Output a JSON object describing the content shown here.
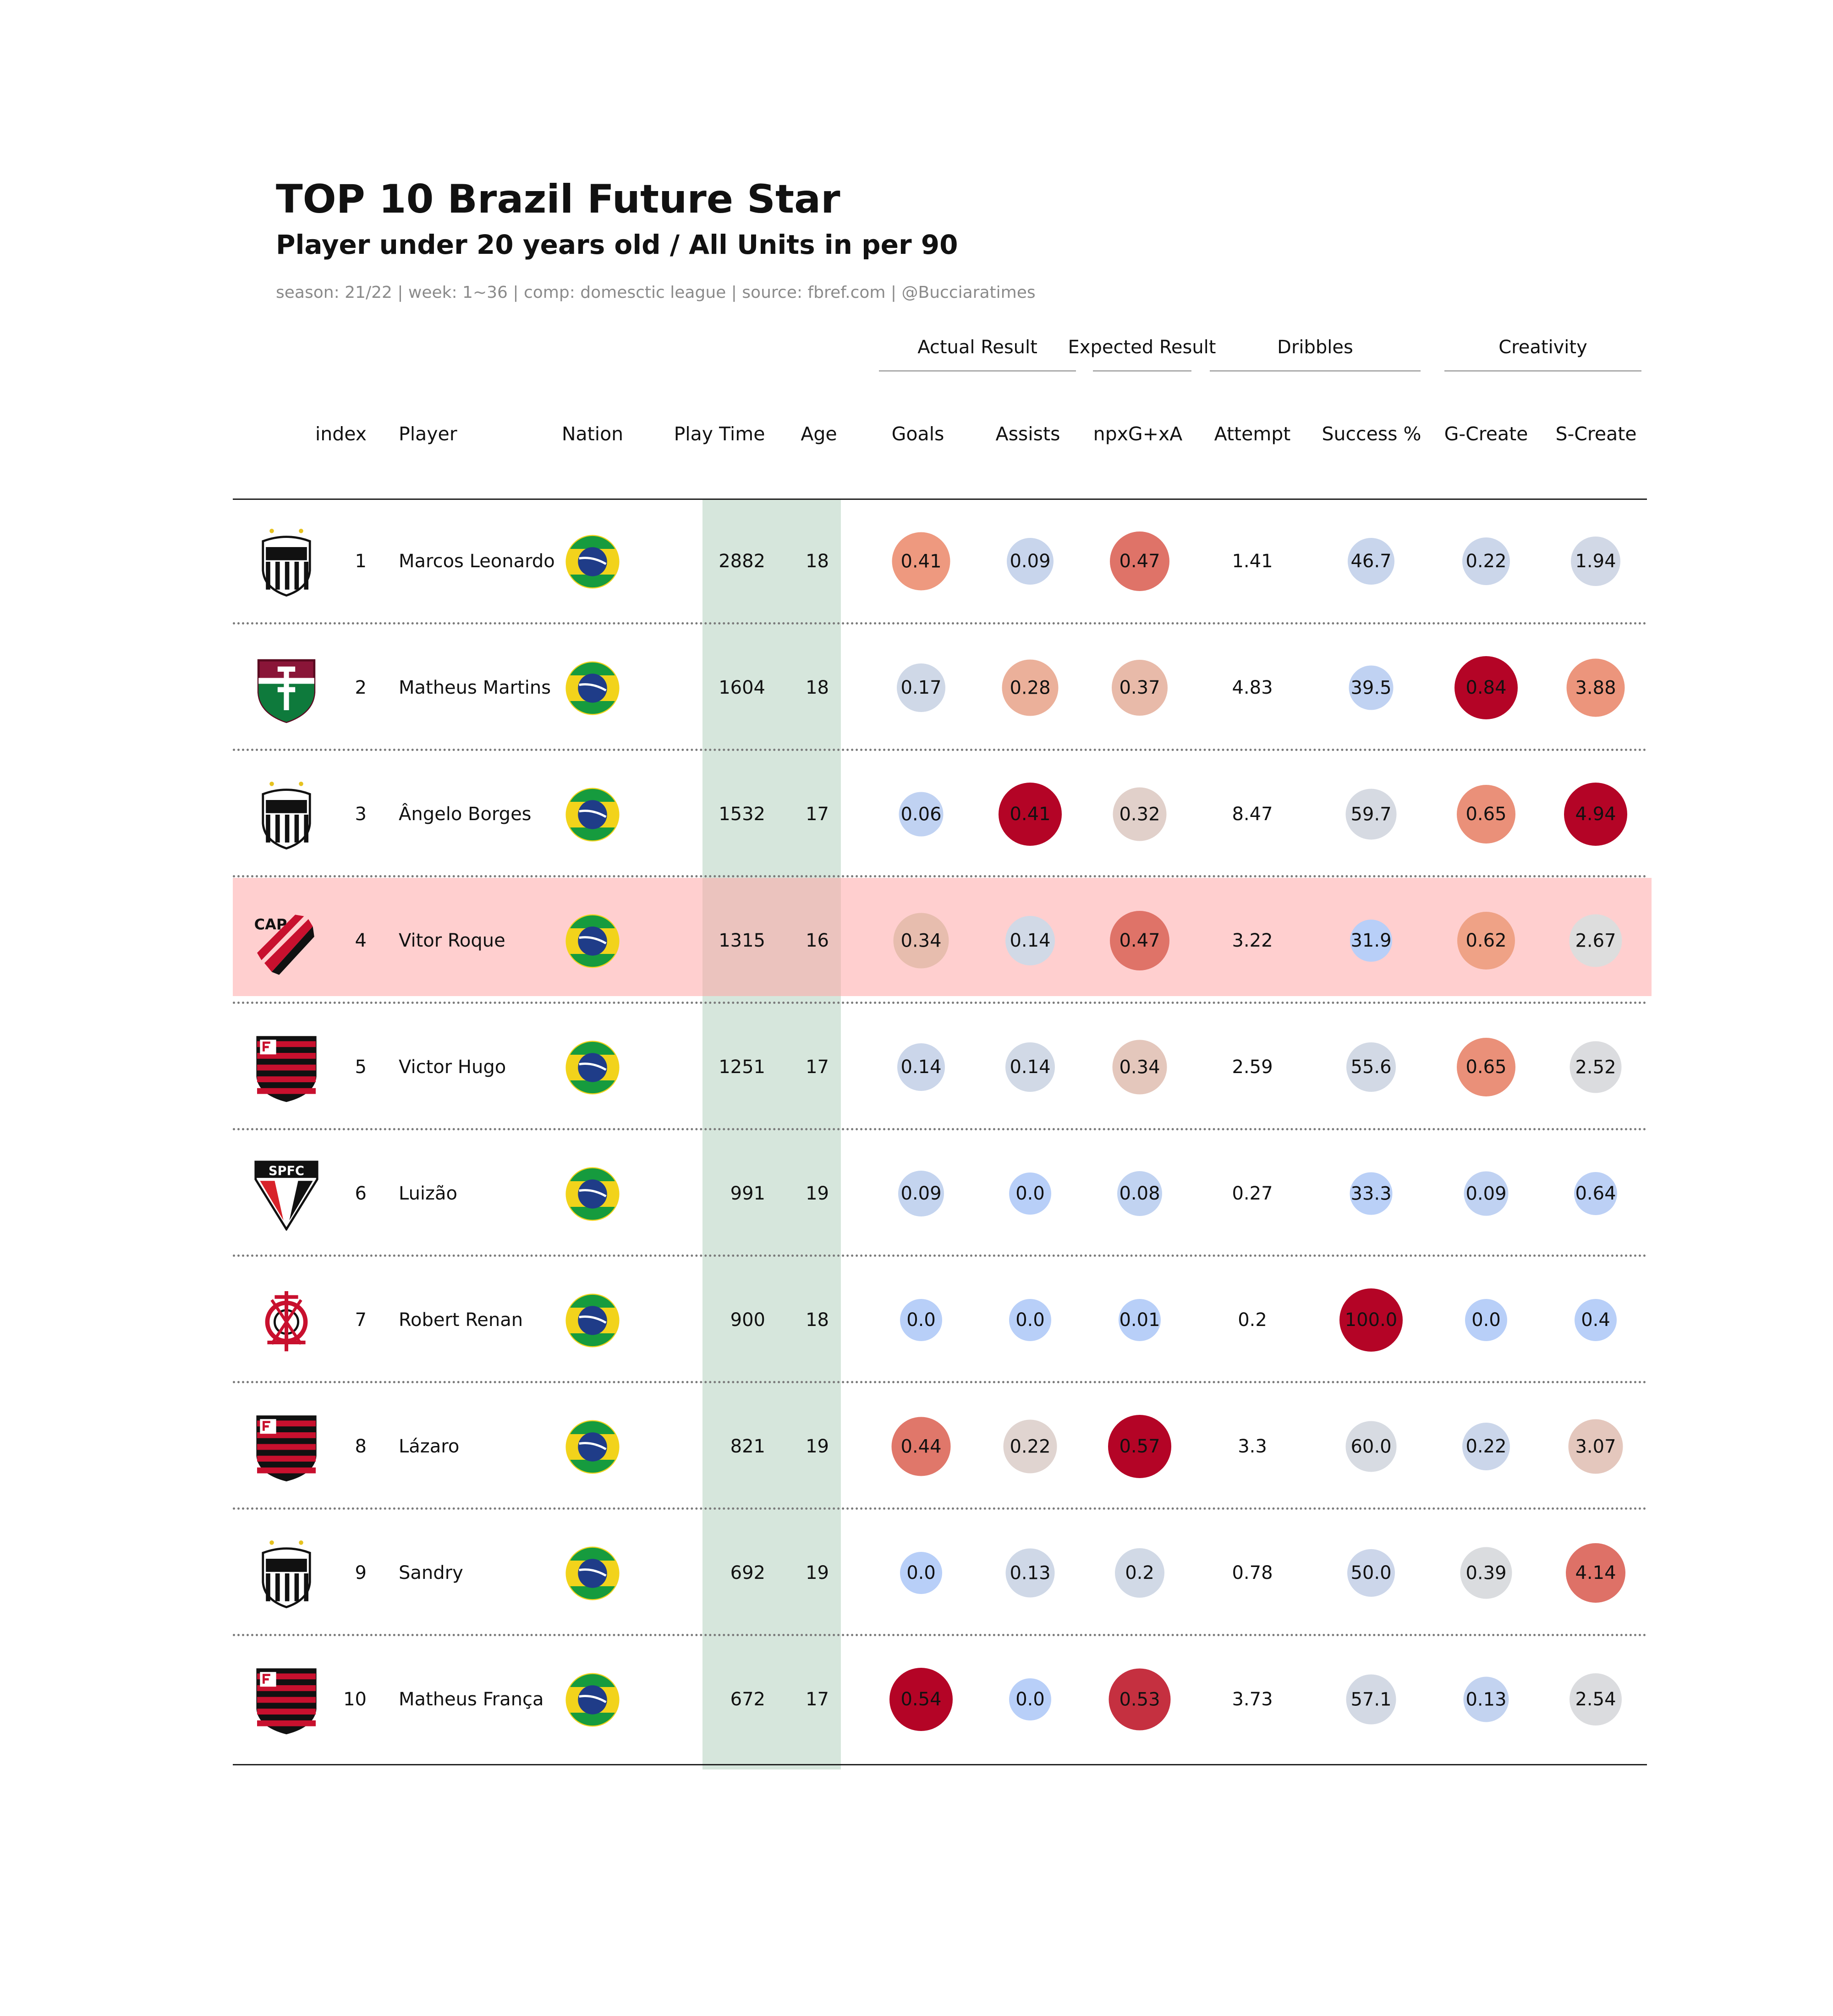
{
  "header": {
    "title": "TOP 10 Brazil Future Star",
    "subtitle": "Player under 20 years old / All Units in per 90",
    "meta": "season: 21/22 | week: 1~36 | comp: domesctic league | source: fbref.com | @Bucciaratimes"
  },
  "groups": [
    {
      "key": "actual",
      "label": "Actual Result"
    },
    {
      "key": "expected",
      "label": "Expected Result"
    },
    {
      "key": "dribbles",
      "label": "Dribbles"
    },
    {
      "key": "creativity",
      "label": "Creativity"
    }
  ],
  "columns": {
    "index": "index",
    "player": "Player",
    "nation": "Nation",
    "playtime": "Play Time",
    "age": "Age",
    "goals": "Goals",
    "assists": "Assists",
    "npxg": "npxG+xA",
    "attempt": "Attempt",
    "success": "Success %",
    "gcreate": "G-Create",
    "screate": "S-Create"
  },
  "chart_data": {
    "type": "table",
    "highlighted_index": 4,
    "rows": [
      {
        "index": "1",
        "player": "Marcos Leonardo",
        "club_logo": "santos-crest-icon",
        "nation": "brazil-flag-icon",
        "playtime": "2882",
        "age": "18",
        "goals": "0.41",
        "assists": "0.09",
        "npxg": "0.47",
        "attempt": "1.41",
        "success": "46.7",
        "gcreate": "0.22",
        "screate": "1.94"
      },
      {
        "index": "2",
        "player": "Matheus Martins",
        "club_logo": "fluminense-crest-icon",
        "nation": "brazil-flag-icon",
        "playtime": "1604",
        "age": "18",
        "goals": "0.17",
        "assists": "0.28",
        "npxg": "0.37",
        "attempt": "4.83",
        "success": "39.5",
        "gcreate": "0.84",
        "screate": "3.88"
      },
      {
        "index": "3",
        "player": "Ângelo Borges",
        "club_logo": "santos-crest-icon",
        "nation": "brazil-flag-icon",
        "playtime": "1532",
        "age": "17",
        "goals": "0.06",
        "assists": "0.41",
        "npxg": "0.32",
        "attempt": "8.47",
        "success": "59.7",
        "gcreate": "0.65",
        "screate": "4.94"
      },
      {
        "index": "4",
        "player": "Vitor Roque",
        "club_logo": "athletico-paranaense-crest-icon",
        "nation": "brazil-flag-icon",
        "playtime": "1315",
        "age": "16",
        "goals": "0.34",
        "assists": "0.14",
        "npxg": "0.47",
        "attempt": "3.22",
        "success": "31.9",
        "gcreate": "0.62",
        "screate": "2.67"
      },
      {
        "index": "5",
        "player": "Victor Hugo",
        "club_logo": "flamengo-crest-icon",
        "nation": "brazil-flag-icon",
        "playtime": "1251",
        "age": "17",
        "goals": "0.14",
        "assists": "0.14",
        "npxg": "0.34",
        "attempt": "2.59",
        "success": "55.6",
        "gcreate": "0.65",
        "screate": "2.52"
      },
      {
        "index": "6",
        "player": "Luizão",
        "club_logo": "sao-paulo-crest-icon",
        "nation": "brazil-flag-icon",
        "playtime": "991",
        "age": "19",
        "goals": "0.09",
        "assists": "0.0",
        "npxg": "0.08",
        "attempt": "0.27",
        "success": "33.3",
        "gcreate": "0.09",
        "screate": "0.64"
      },
      {
        "index": "7",
        "player": "Robert Renan",
        "club_logo": "corinthians-crest-icon",
        "nation": "brazil-flag-icon",
        "playtime": "900",
        "age": "18",
        "goals": "0.0",
        "assists": "0.0",
        "npxg": "0.01",
        "attempt": "0.2",
        "success": "100.0",
        "gcreate": "0.0",
        "screate": "0.4"
      },
      {
        "index": "8",
        "player": "Lázaro",
        "club_logo": "flamengo-crest-icon",
        "nation": "brazil-flag-icon",
        "playtime": "821",
        "age": "19",
        "goals": "0.44",
        "assists": "0.22",
        "npxg": "0.57",
        "attempt": "3.3",
        "success": "60.0",
        "gcreate": "0.22",
        "screate": "3.07"
      },
      {
        "index": "9",
        "player": "Sandry",
        "club_logo": "santos-crest-icon",
        "nation": "brazil-flag-icon",
        "playtime": "692",
        "age": "19",
        "goals": "0.0",
        "assists": "0.13",
        "npxg": "0.2",
        "attempt": "0.78",
        "success": "50.0",
        "gcreate": "0.39",
        "screate": "4.14"
      },
      {
        "index": "10",
        "player": "Matheus França",
        "club_logo": "flamengo-crest-icon",
        "nation": "brazil-flag-icon",
        "playtime": "672",
        "age": "17",
        "goals": "0.54",
        "assists": "0.0",
        "npxg": "0.53",
        "attempt": "3.73",
        "success": "57.1",
        "gcreate": "0.13",
        "screate": "2.54"
      }
    ]
  }
}
